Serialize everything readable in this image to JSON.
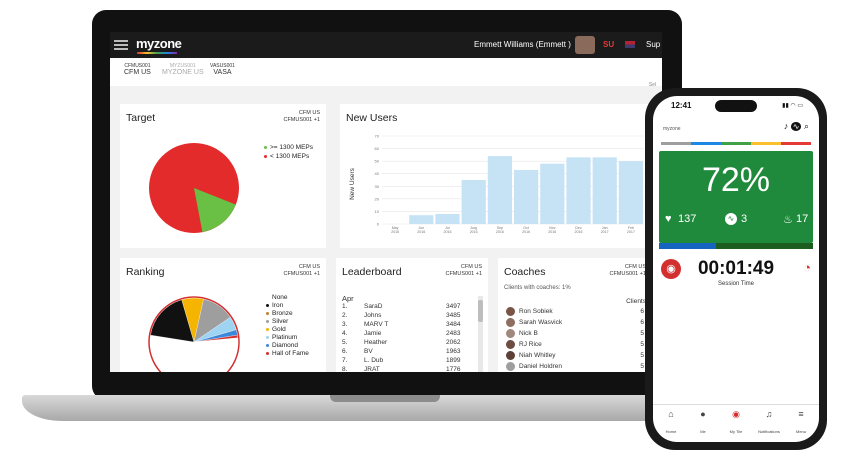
{
  "header": {
    "logo": "myzone",
    "user_name": "Emmett Williams (Emmett )",
    "lang": "SU",
    "support": "Sup"
  },
  "clubs": [
    {
      "code": "CFMUS001",
      "name": "CFM US",
      "active": true
    },
    {
      "code": "MYZUS001",
      "name": "MYZONE US",
      "active": false
    },
    {
      "code": "VASUS001",
      "name": "VASA",
      "active": true
    }
  ],
  "select_label": "Sel",
  "target": {
    "title": "Target",
    "tag_line1": "CFM US",
    "tag_line2": "CFMUS001 +1",
    "legend": [
      {
        "label": ">= 1300 MEPs",
        "color": "#6abf45"
      },
      {
        "label": "< 1300 MEPs",
        "color": "#e32b2b"
      }
    ],
    "values": [
      0.84,
      0.16
    ]
  },
  "new_users": {
    "title": "New Users",
    "y_axis_label": "New Users"
  },
  "chart_data": {
    "type": "bar",
    "title": "New Users",
    "ylabel": "New Users",
    "ylim": [
      0,
      70
    ],
    "yticks": [
      0,
      10,
      20,
      30,
      40,
      50,
      60,
      70
    ],
    "categories": [
      "May 2016",
      "Jun 2016",
      "Jul 2016",
      "Aug 2016",
      "Sep 2016",
      "Oct 2016",
      "Nov 2016",
      "Dec 2016",
      "Jan 2017",
      "Feb 2017"
    ],
    "values": [
      0,
      7,
      8,
      35,
      54,
      43,
      48,
      53,
      53,
      50
    ]
  },
  "ranking": {
    "title": "Ranking",
    "tag_line1": "CFM US",
    "tag_line2": "CFMUS001 +1",
    "legend": [
      {
        "label": "None",
        "color": "#ffffff"
      },
      {
        "label": "Iron",
        "color": "#111111"
      },
      {
        "label": "Bronze",
        "color": "#c2802e"
      },
      {
        "label": "Silver",
        "color": "#9e9e9e"
      },
      {
        "label": "Gold",
        "color": "#f4b400"
      },
      {
        "label": "Platinum",
        "color": "#9fd3f2"
      },
      {
        "label": "Diamond",
        "color": "#3b88d9"
      },
      {
        "label": "Hall of Fame",
        "color": "#d32f2f"
      }
    ],
    "values": [
      0.4,
      0.18,
      0.14,
      0.12,
      0.08,
      0.05,
      0.02,
      0.01
    ]
  },
  "leaderboard": {
    "title": "Leaderboard",
    "tag_line1": "CFM US",
    "tag_line2": "CFMUS001 +1",
    "month": "Apr",
    "rows": [
      {
        "rank": "1.",
        "name": "SaraD",
        "score": "3497"
      },
      {
        "rank": "2.",
        "name": "Johns",
        "score": "3485"
      },
      {
        "rank": "3.",
        "name": "MARV T",
        "score": "3484"
      },
      {
        "rank": "4.",
        "name": "Jamie",
        "score": "2483"
      },
      {
        "rank": "5.",
        "name": "Heather",
        "score": "2062"
      },
      {
        "rank": "6.",
        "name": "BV",
        "score": "1963"
      },
      {
        "rank": "7.",
        "name": "L. Dub",
        "score": "1899"
      },
      {
        "rank": "8.",
        "name": "JRAT",
        "score": "1776"
      }
    ]
  },
  "coaches": {
    "title": "Coaches",
    "tag_line1": "CFM US",
    "tag_line2": "CFMUS001 +1",
    "subtitle": "Clients with coaches: 1%",
    "col_header": "Clients",
    "rows": [
      {
        "name": "Ron Sobiek",
        "clients": "6"
      },
      {
        "name": "Sarah Wasvick",
        "clients": "6"
      },
      {
        "name": "Nick B",
        "clients": "5"
      },
      {
        "name": "RJ Rice",
        "clients": "5"
      },
      {
        "name": "Niah Whitley",
        "clients": "5"
      },
      {
        "name": "Daniel Holdren",
        "clients": "5"
      }
    ]
  },
  "phone": {
    "time": "12:41",
    "effort_pct": "72%",
    "effort_fraction": 0.72,
    "heart_rate": "137",
    "meps": "3",
    "calories": "17",
    "session_time": "00:01:49",
    "session_label": "Session Time",
    "bar_progress": 0.37,
    "nav": [
      {
        "label": "Home",
        "icon": "home-icon"
      },
      {
        "label": "Me",
        "icon": "avatar-icon"
      },
      {
        "label": "My Tile",
        "icon": "tile-icon"
      },
      {
        "label": "Notifications",
        "icon": "bell-icon"
      },
      {
        "label": "Menu",
        "icon": "menu-icon"
      }
    ]
  }
}
